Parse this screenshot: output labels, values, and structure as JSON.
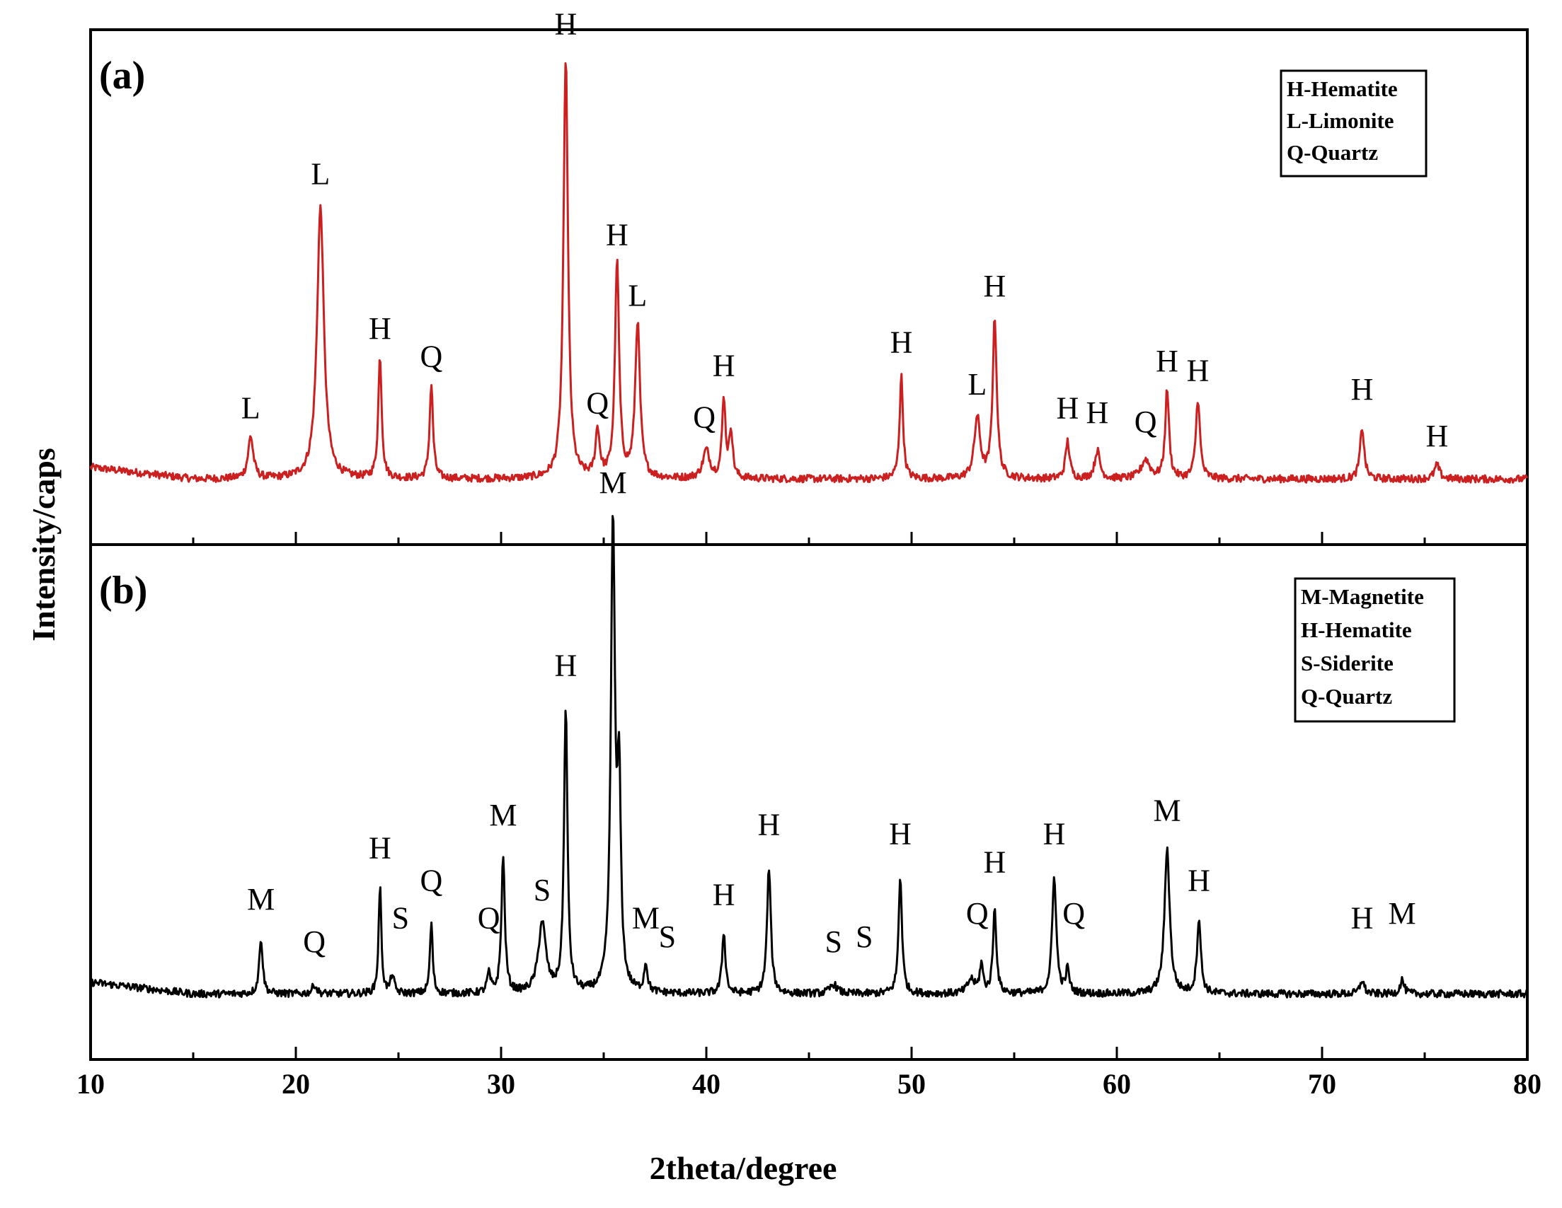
{
  "chart_data": {
    "type": "line",
    "xlabel": "2theta/degree",
    "ylabel": "Intensity/caps",
    "xlim": [
      10,
      80
    ],
    "x_ticks": [
      10,
      20,
      30,
      40,
      50,
      60,
      70,
      80
    ],
    "x_tick_labels": [
      "10",
      "20",
      "30",
      "40",
      "50",
      "60",
      "70",
      "80"
    ],
    "grid": false,
    "panels": [
      {
        "id": "a",
        "label": "(a)",
        "color": "#cc1f1f",
        "baseline": 14,
        "ylim": [
          0,
          110
        ],
        "legend": [
          "H-Hematite",
          "L-Limonite",
          "Q-Quartz"
        ],
        "peaks": [
          {
            "x": 17.8,
            "h": 9,
            "w": 0.15
          },
          {
            "x": 21.2,
            "h": 58,
            "w": 0.2
          },
          {
            "x": 24.1,
            "h": 26,
            "w": 0.1
          },
          {
            "x": 26.6,
            "h": 20,
            "w": 0.1
          },
          {
            "x": 33.15,
            "h": 90,
            "w": 0.13
          },
          {
            "x": 34.7,
            "h": 10,
            "w": 0.12
          },
          {
            "x": 35.65,
            "h": 46,
            "w": 0.12
          },
          {
            "x": 36.65,
            "h": 33,
            "w": 0.14
          },
          {
            "x": 40.0,
            "h": 6,
            "w": 0.2
          },
          {
            "x": 40.85,
            "h": 17,
            "w": 0.1
          },
          {
            "x": 41.2,
            "h": 10,
            "w": 0.1
          },
          {
            "x": 49.5,
            "h": 22,
            "w": 0.1
          },
          {
            "x": 53.2,
            "h": 13,
            "w": 0.17
          },
          {
            "x": 54.05,
            "h": 34,
            "w": 0.12
          },
          {
            "x": 57.6,
            "h": 8,
            "w": 0.12
          },
          {
            "x": 59.05,
            "h": 6,
            "w": 0.15
          },
          {
            "x": 61.4,
            "h": 4,
            "w": 0.25
          },
          {
            "x": 62.45,
            "h": 19,
            "w": 0.11
          },
          {
            "x": 63.95,
            "h": 17,
            "w": 0.12
          },
          {
            "x": 71.95,
            "h": 11,
            "w": 0.12
          },
          {
            "x": 75.6,
            "h": 3,
            "w": 0.15
          }
        ],
        "annotations": [
          {
            "text": "L",
            "x": 17.8,
            "y": 27
          },
          {
            "text": "L",
            "x": 21.2,
            "y": 77
          },
          {
            "text": "H",
            "x": 24.1,
            "y": 44
          },
          {
            "text": "Q",
            "x": 26.6,
            "y": 38
          },
          {
            "text": "H",
            "x": 33.15,
            "y": 109
          },
          {
            "text": "Q",
            "x": 34.7,
            "y": 28
          },
          {
            "text": "H",
            "x": 35.65,
            "y": 64
          },
          {
            "text": "L",
            "x": 36.65,
            "y": 51
          },
          {
            "text": "Q",
            "x": 39.9,
            "y": 25
          },
          {
            "text": "H",
            "x": 40.85,
            "y": 36
          },
          {
            "text": "H",
            "x": 49.5,
            "y": 41
          },
          {
            "text": "L",
            "x": 53.2,
            "y": 32
          },
          {
            "text": "H",
            "x": 54.05,
            "y": 53
          },
          {
            "text": "H",
            "x": 57.6,
            "y": 27
          },
          {
            "text": "H",
            "x": 59.05,
            "y": 26
          },
          {
            "text": "Q",
            "x": 61.4,
            "y": 24
          },
          {
            "text": "H",
            "x": 62.45,
            "y": 37
          },
          {
            "text": "H",
            "x": 63.95,
            "y": 35
          },
          {
            "text": "H",
            "x": 71.95,
            "y": 31
          },
          {
            "text": "H",
            "x": 75.6,
            "y": 21
          }
        ]
      },
      {
        "id": "b",
        "label": "(b)",
        "color": "#000000",
        "baseline": 14,
        "ylim": [
          0,
          110
        ],
        "legend": [
          "M-Magnetite",
          "H-Hematite",
          "S-Siderite",
          "Q-Quartz"
        ],
        "peaks": [
          {
            "x": 18.3,
            "h": 12,
            "w": 0.1
          },
          {
            "x": 20.9,
            "h": 2,
            "w": 0.12
          },
          {
            "x": 24.1,
            "h": 23,
            "w": 0.08
          },
          {
            "x": 24.7,
            "h": 4,
            "w": 0.1
          },
          {
            "x": 26.6,
            "h": 15,
            "w": 0.08
          },
          {
            "x": 29.4,
            "h": 4,
            "w": 0.1
          },
          {
            "x": 30.1,
            "h": 29,
            "w": 0.1
          },
          {
            "x": 32.0,
            "h": 15,
            "w": 0.22
          },
          {
            "x": 33.15,
            "h": 61,
            "w": 0.1
          },
          {
            "x": 35.45,
            "h": 100,
            "w": 0.12
          },
          {
            "x": 35.75,
            "h": 42,
            "w": 0.1
          },
          {
            "x": 37.05,
            "h": 6,
            "w": 0.1
          },
          {
            "x": 40.85,
            "h": 13,
            "w": 0.1
          },
          {
            "x": 43.05,
            "h": 27,
            "w": 0.11
          },
          {
            "x": 46.2,
            "h": 2,
            "w": 0.2
          },
          {
            "x": 49.45,
            "h": 25,
            "w": 0.1
          },
          {
            "x": 52.9,
            "h": 3,
            "w": 0.2
          },
          {
            "x": 53.4,
            "h": 6,
            "w": 0.1
          },
          {
            "x": 54.05,
            "h": 18,
            "w": 0.1
          },
          {
            "x": 56.95,
            "h": 25,
            "w": 0.12
          },
          {
            "x": 57.6,
            "h": 5,
            "w": 0.1
          },
          {
            "x": 62.45,
            "h": 31,
            "w": 0.15
          },
          {
            "x": 64.0,
            "h": 16,
            "w": 0.11
          },
          {
            "x": 71.95,
            "h": 3,
            "w": 0.12
          },
          {
            "x": 73.9,
            "h": 3,
            "w": 0.12
          }
        ],
        "annotations": [
          {
            "text": "M",
            "x": 18.3,
            "y": 32
          },
          {
            "text": "Q",
            "x": 20.9,
            "y": 23
          },
          {
            "text": "H",
            "x": 24.1,
            "y": 43
          },
          {
            "text": "S",
            "x": 25.1,
            "y": 28
          },
          {
            "text": "Q",
            "x": 26.6,
            "y": 36
          },
          {
            "text": "Q",
            "x": 29.4,
            "y": 28
          },
          {
            "text": "M",
            "x": 30.1,
            "y": 50
          },
          {
            "text": "S",
            "x": 32.0,
            "y": 34
          },
          {
            "text": "H",
            "x": 33.15,
            "y": 82
          },
          {
            "text": "M",
            "x": 35.45,
            "y": 121
          },
          {
            "text": "M",
            "x": 37.05,
            "y": 28
          },
          {
            "text": "S",
            "x": 38.1,
            "y": 24
          },
          {
            "text": "H",
            "x": 40.85,
            "y": 33
          },
          {
            "text": "H",
            "x": 43.05,
            "y": 48
          },
          {
            "text": "S",
            "x": 46.2,
            "y": 23
          },
          {
            "text": "S",
            "x": 47.7,
            "y": 24
          },
          {
            "text": "H",
            "x": 49.45,
            "y": 46
          },
          {
            "text": "Q",
            "x": 53.2,
            "y": 29
          },
          {
            "text": "H",
            "x": 54.05,
            "y": 40
          },
          {
            "text": "H",
            "x": 56.95,
            "y": 46
          },
          {
            "text": "Q",
            "x": 57.9,
            "y": 29
          },
          {
            "text": "M",
            "x": 62.45,
            "y": 51
          },
          {
            "text": "H",
            "x": 64.0,
            "y": 36
          },
          {
            "text": "H",
            "x": 71.95,
            "y": 28
          },
          {
            "text": "M",
            "x": 73.9,
            "y": 29
          }
        ]
      }
    ]
  }
}
